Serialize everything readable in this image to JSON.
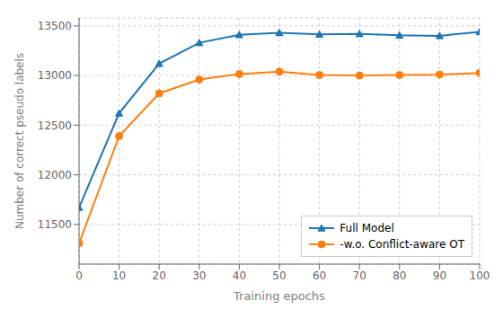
{
  "chart_data": {
    "type": "line",
    "x": [
      0,
      10,
      20,
      30,
      40,
      50,
      60,
      70,
      80,
      90,
      100
    ],
    "series": [
      {
        "name": "Full Model",
        "color": "#1f77b4",
        "marker": "triangle",
        "values": [
          11670,
          12620,
          13120,
          13330,
          13410,
          13430,
          13415,
          13420,
          13405,
          13400,
          13440
        ]
      },
      {
        "name": "-w.o. Conflict-aware OT",
        "color": "#ff7f0e",
        "marker": "circle",
        "values": [
          11310,
          12390,
          12820,
          12960,
          13015,
          13040,
          13005,
          13000,
          13005,
          13010,
          13025
        ]
      }
    ],
    "xlabel": "Training epochs",
    "ylabel": "Number of correct pseudo labels",
    "xlim": [
      0,
      100
    ],
    "xticks": [
      0,
      10,
      20,
      30,
      40,
      50,
      60,
      70,
      80,
      90,
      100
    ],
    "ylim": [
      11100,
      13580
    ],
    "yticks": [
      11500,
      12000,
      12500,
      13000,
      13500
    ],
    "grid": true,
    "legend": "lower right"
  }
}
